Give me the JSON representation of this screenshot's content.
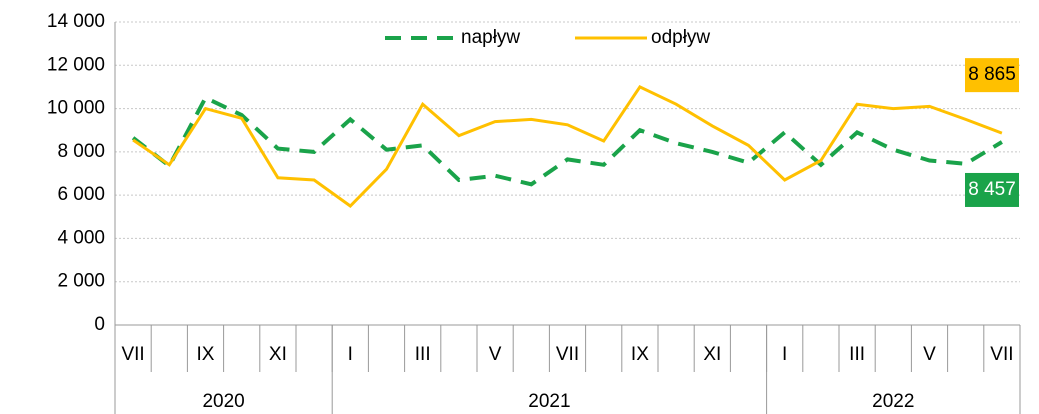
{
  "chart_data": {
    "type": "line",
    "categories": [
      "VII",
      null,
      "IX",
      null,
      "XI",
      null,
      "I",
      null,
      "III",
      null,
      "V",
      null,
      "VII",
      null,
      "IX",
      null,
      "XI",
      null,
      "I",
      null,
      "III",
      null,
      "V",
      null,
      "VII"
    ],
    "groups": [
      {
        "label": "2020",
        "span": 6
      },
      {
        "label": "2021",
        "span": 12
      },
      {
        "label": "2022",
        "span": 7
      }
    ],
    "series": [
      {
        "name": "napływ",
        "color": "#1aa34a",
        "dash": true,
        "values": [
          8650,
          7350,
          10500,
          9700,
          8150,
          8000,
          9500,
          8100,
          8300,
          6700,
          6900,
          6500,
          7650,
          7400,
          9000,
          8400,
          8000,
          7500,
          8900,
          7400,
          8900,
          8100,
          7600,
          7450,
          8457
        ],
        "value_labels": [
          null,
          null,
          null,
          null,
          null,
          null,
          null,
          null,
          null,
          null,
          null,
          null,
          null,
          null,
          null,
          null,
          null,
          null,
          null,
          null,
          null,
          null,
          null,
          null,
          "8 457"
        ]
      },
      {
        "name": "odpływ",
        "color": "#ffc000",
        "dash": false,
        "values": [
          8550,
          7400,
          10000,
          9550,
          6800,
          6700,
          5500,
          7200,
          10200,
          8750,
          9400,
          9500,
          9250,
          8500,
          11000,
          10200,
          9200,
          8300,
          6700,
          7600,
          10200,
          10000,
          10100,
          9500,
          8865
        ],
        "value_labels": [
          null,
          null,
          null,
          null,
          null,
          null,
          null,
          null,
          null,
          null,
          null,
          null,
          null,
          null,
          null,
          null,
          null,
          null,
          null,
          null,
          null,
          null,
          null,
          null,
          "8 865"
        ]
      }
    ],
    "ylim": [
      0,
      14000
    ],
    "yticks": [
      0,
      {
        "value": 2000,
        "label": "2 000"
      },
      {
        "value": 4000,
        "label": "4 000"
      },
      {
        "value": 6000,
        "label": "6 000"
      },
      {
        "value": 8000,
        "label": "8 000"
      },
      {
        "value": 10000,
        "label": "10 000"
      },
      {
        "value": 12000,
        "label": "12 000"
      },
      {
        "value": 14000,
        "label": "14 000"
      }
    ],
    "grid": true,
    "legend": "top"
  }
}
